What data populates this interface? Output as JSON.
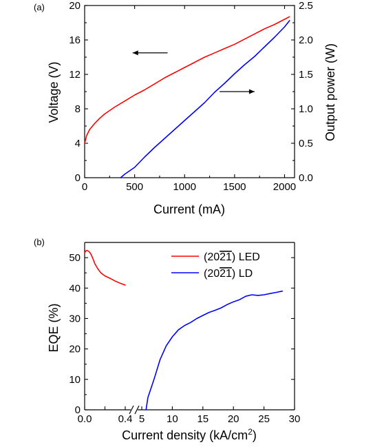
{
  "chart_data": [
    {
      "panel_label": "(a)",
      "type": "line",
      "xlabel": "Current (mA)",
      "ylabel_left": "Voltage (V)",
      "ylabel_right": "Output power (W)",
      "xlim": [
        0,
        2100
      ],
      "ylim_left": [
        0,
        20
      ],
      "ylim_right": [
        0,
        2.5
      ],
      "xticks": [
        "0",
        "500",
        "1000",
        "1500",
        "2000"
      ],
      "yticks_left": [
        "0",
        "4",
        "8",
        "12",
        "16",
        "20"
      ],
      "yticks_right": [
        "0.0",
        "0.5",
        "1.0",
        "1.5",
        "2.0",
        "2.5"
      ],
      "grid": false,
      "series": [
        {
          "axis": "left",
          "color": "#ff0000",
          "x": [
            0,
            20,
            50,
            100,
            150,
            200,
            300,
            400,
            500,
            600,
            700,
            800,
            900,
            1000,
            1100,
            1200,
            1300,
            1400,
            1500,
            1600,
            1700,
            1800,
            1900,
            2000,
            2050
          ],
          "y": [
            4.0,
            4.9,
            5.6,
            6.3,
            6.9,
            7.4,
            8.2,
            8.9,
            9.6,
            10.2,
            10.9,
            11.6,
            12.2,
            12.8,
            13.4,
            14.0,
            14.5,
            15.0,
            15.5,
            16.1,
            16.7,
            17.3,
            17.8,
            18.4,
            18.7
          ]
        },
        {
          "axis": "right",
          "color": "#0000ff",
          "x": [
            360,
            400,
            500,
            600,
            700,
            800,
            900,
            1000,
            1100,
            1200,
            1300,
            1400,
            1500,
            1600,
            1700,
            1800,
            1900,
            2000,
            2050
          ],
          "y": [
            0.0,
            0.05,
            0.15,
            0.3,
            0.44,
            0.57,
            0.7,
            0.83,
            0.96,
            1.09,
            1.24,
            1.37,
            1.51,
            1.64,
            1.76,
            1.9,
            2.04,
            2.19,
            2.28
          ]
        }
      ],
      "arrows": [
        {
          "points_to": "left",
          "x_from": 830,
          "x_to": 480,
          "y_value": 14.5,
          "axis": "left"
        },
        {
          "points_to": "right",
          "x_from": 1350,
          "x_to": 1700,
          "y_value": 1.25,
          "axis": "right"
        }
      ]
    },
    {
      "panel_label": "(b)",
      "type": "line",
      "xlabel": "Current density (kA/cm",
      "xlabel_superscript": "2",
      "xlabel_suffix": ")",
      "ylabel": "EQE (%)",
      "ylim": [
        0,
        55
      ],
      "yticks": [
        "0",
        "10",
        "20",
        "30",
        "40",
        "50"
      ],
      "broken_x_axis": true,
      "segment1": {
        "xlim": [
          0,
          0.4
        ],
        "xticks": [
          "0.0",
          "0.2",
          "0.4"
        ]
      },
      "segment2": {
        "xlim": [
          5,
          30
        ],
        "xticks": [
          "5",
          "10",
          "15",
          "20",
          "25",
          "30"
        ]
      },
      "grid": false,
      "legend_position": "top-right",
      "series": [
        {
          "name": "(20",
          "name_overline": "21",
          "name_suffix": ") LED",
          "color": "#ff0000",
          "segment": 1,
          "x": [
            0.0,
            0.01,
            0.02,
            0.04,
            0.06,
            0.08,
            0.1,
            0.13,
            0.16,
            0.2,
            0.25,
            0.3,
            0.35,
            0.4
          ],
          "y": [
            51.5,
            52.2,
            52.4,
            52.1,
            51.3,
            49.8,
            48.0,
            46.3,
            45.0,
            44.0,
            43.2,
            42.3,
            41.6,
            41.0
          ]
        },
        {
          "name": "(20",
          "name_overline": "21",
          "name_suffix": ") LD",
          "color": "#0000ff",
          "segment": 2,
          "x": [
            5.7,
            6.0,
            7.0,
            8.0,
            9.0,
            10.0,
            11.0,
            12.0,
            13.0,
            14.0,
            15.0,
            16.0,
            17.0,
            18.0,
            19.0,
            20.0,
            21.0,
            22.0,
            23.0,
            24.0,
            25.0,
            26.0,
            27.0,
            28.0
          ],
          "y": [
            0.0,
            4.0,
            10.0,
            16.5,
            21.0,
            24.0,
            26.3,
            27.7,
            28.7,
            30.0,
            31.0,
            32.0,
            32.7,
            33.5,
            34.6,
            35.5,
            36.2,
            37.3,
            37.8,
            37.6,
            37.8,
            38.2,
            38.6,
            39.0
          ]
        }
      ]
    }
  ]
}
